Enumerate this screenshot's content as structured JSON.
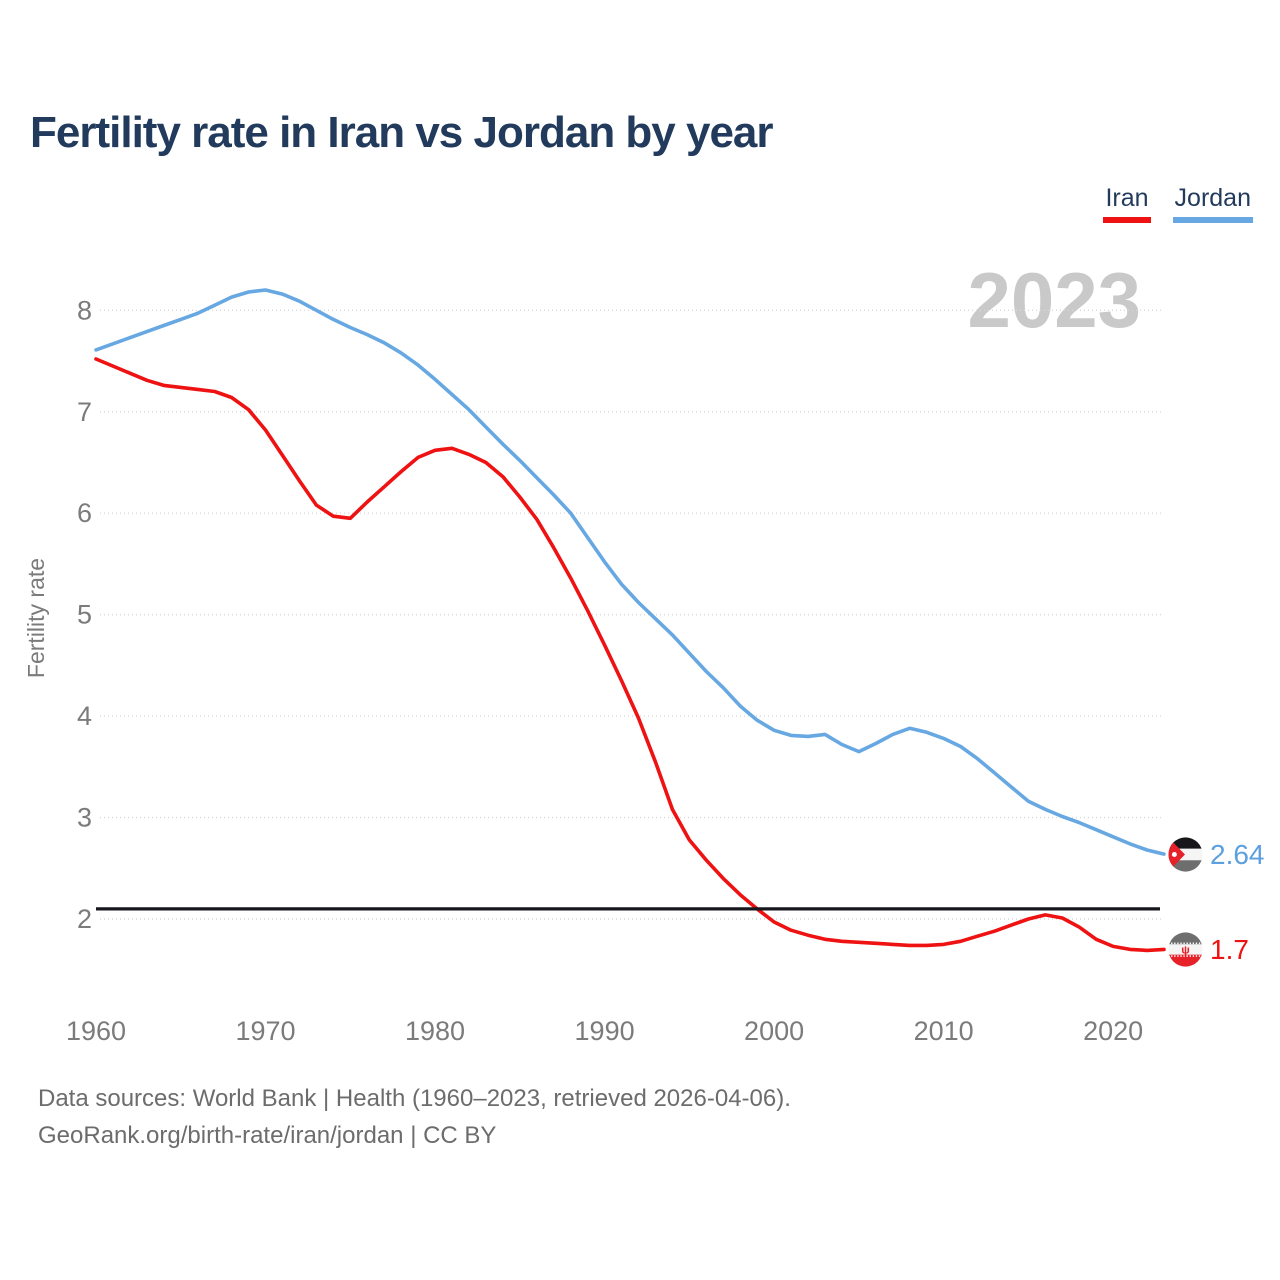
{
  "title": "Fertility rate in Iran vs Jordan by year",
  "legend": {
    "items": [
      {
        "label": "Iran",
        "color": "#ee1212"
      },
      {
        "label": "Jordan",
        "color": "#67a8e2"
      }
    ]
  },
  "watermark": "2023",
  "end_labels": {
    "jordan": {
      "value": "2.64",
      "color": "#5ca0e0",
      "flag": "jordan-flag"
    },
    "iran": {
      "value": "1.7",
      "color": "#ee1212",
      "flag": "iran-flag"
    }
  },
  "footer": {
    "line1": "Data sources: World Bank | Health (1960–2023, retrieved 2026-04-06).",
    "line2": "GeoRank.org/birth-rate/iran/jordan | CC BY"
  },
  "chart_data": {
    "type": "line",
    "title": "Fertility rate in Iran vs Jordan by year",
    "xlabel": "",
    "ylabel": "Fertility rate",
    "x_ticks": [
      1960,
      1970,
      1980,
      1990,
      2000,
      2010,
      2020
    ],
    "y_ticks": [
      2,
      3,
      4,
      5,
      6,
      7,
      8
    ],
    "xlim": [
      1960,
      2023
    ],
    "ylim": [
      1.6,
      8.45
    ],
    "grid": "horizontal-dotted",
    "legend_position": "top-right",
    "reference_line": {
      "value": 2.1,
      "color": "#16161d"
    },
    "years": [
      1960,
      1961,
      1962,
      1963,
      1964,
      1965,
      1966,
      1967,
      1968,
      1969,
      1970,
      1971,
      1972,
      1973,
      1974,
      1975,
      1976,
      1977,
      1978,
      1979,
      1980,
      1981,
      1982,
      1983,
      1984,
      1985,
      1986,
      1987,
      1988,
      1989,
      1990,
      1991,
      1992,
      1993,
      1994,
      1995,
      1996,
      1997,
      1998,
      1999,
      2000,
      2001,
      2002,
      2003,
      2004,
      2005,
      2006,
      2007,
      2008,
      2009,
      2010,
      2011,
      2012,
      2013,
      2014,
      2015,
      2016,
      2017,
      2018,
      2019,
      2020,
      2021,
      2022,
      2023
    ],
    "series": [
      {
        "name": "Iran",
        "color": "#ee1212",
        "values": [
          7.52,
          7.45,
          7.38,
          7.31,
          7.26,
          7.24,
          7.22,
          7.2,
          7.14,
          7.02,
          6.82,
          6.57,
          6.32,
          6.08,
          5.97,
          5.95,
          6.11,
          6.26,
          6.41,
          6.55,
          6.62,
          6.64,
          6.58,
          6.5,
          6.36,
          6.16,
          5.94,
          5.66,
          5.36,
          5.04,
          4.7,
          4.35,
          3.98,
          3.55,
          3.08,
          2.78,
          2.58,
          2.4,
          2.24,
          2.1,
          1.97,
          1.89,
          1.84,
          1.8,
          1.78,
          1.77,
          1.76,
          1.75,
          1.74,
          1.74,
          1.75,
          1.78,
          1.83,
          1.88,
          1.94,
          2.0,
          2.04,
          2.01,
          1.92,
          1.8,
          1.73,
          1.7,
          1.69,
          1.7
        ]
      },
      {
        "name": "Jordan",
        "color": "#67a8e2",
        "values": [
          7.61,
          7.67,
          7.73,
          7.79,
          7.85,
          7.91,
          7.97,
          8.05,
          8.13,
          8.18,
          8.2,
          8.16,
          8.09,
          8.0,
          7.91,
          7.83,
          7.76,
          7.68,
          7.58,
          7.46,
          7.32,
          7.17,
          7.02,
          6.85,
          6.68,
          6.52,
          6.35,
          6.18,
          6.0,
          5.76,
          5.52,
          5.3,
          5.12,
          4.96,
          4.8,
          4.62,
          4.44,
          4.28,
          4.1,
          3.96,
          3.86,
          3.81,
          3.8,
          3.82,
          3.72,
          3.65,
          3.73,
          3.82,
          3.88,
          3.84,
          3.78,
          3.7,
          3.58,
          3.44,
          3.3,
          3.16,
          3.08,
          3.01,
          2.95,
          2.88,
          2.81,
          2.74,
          2.68,
          2.64
        ]
      }
    ],
    "end_markers": [
      {
        "series": "Jordan",
        "year": 2023,
        "value": 2.64
      },
      {
        "series": "Iran",
        "year": 2023,
        "value": 1.7
      }
    ]
  }
}
